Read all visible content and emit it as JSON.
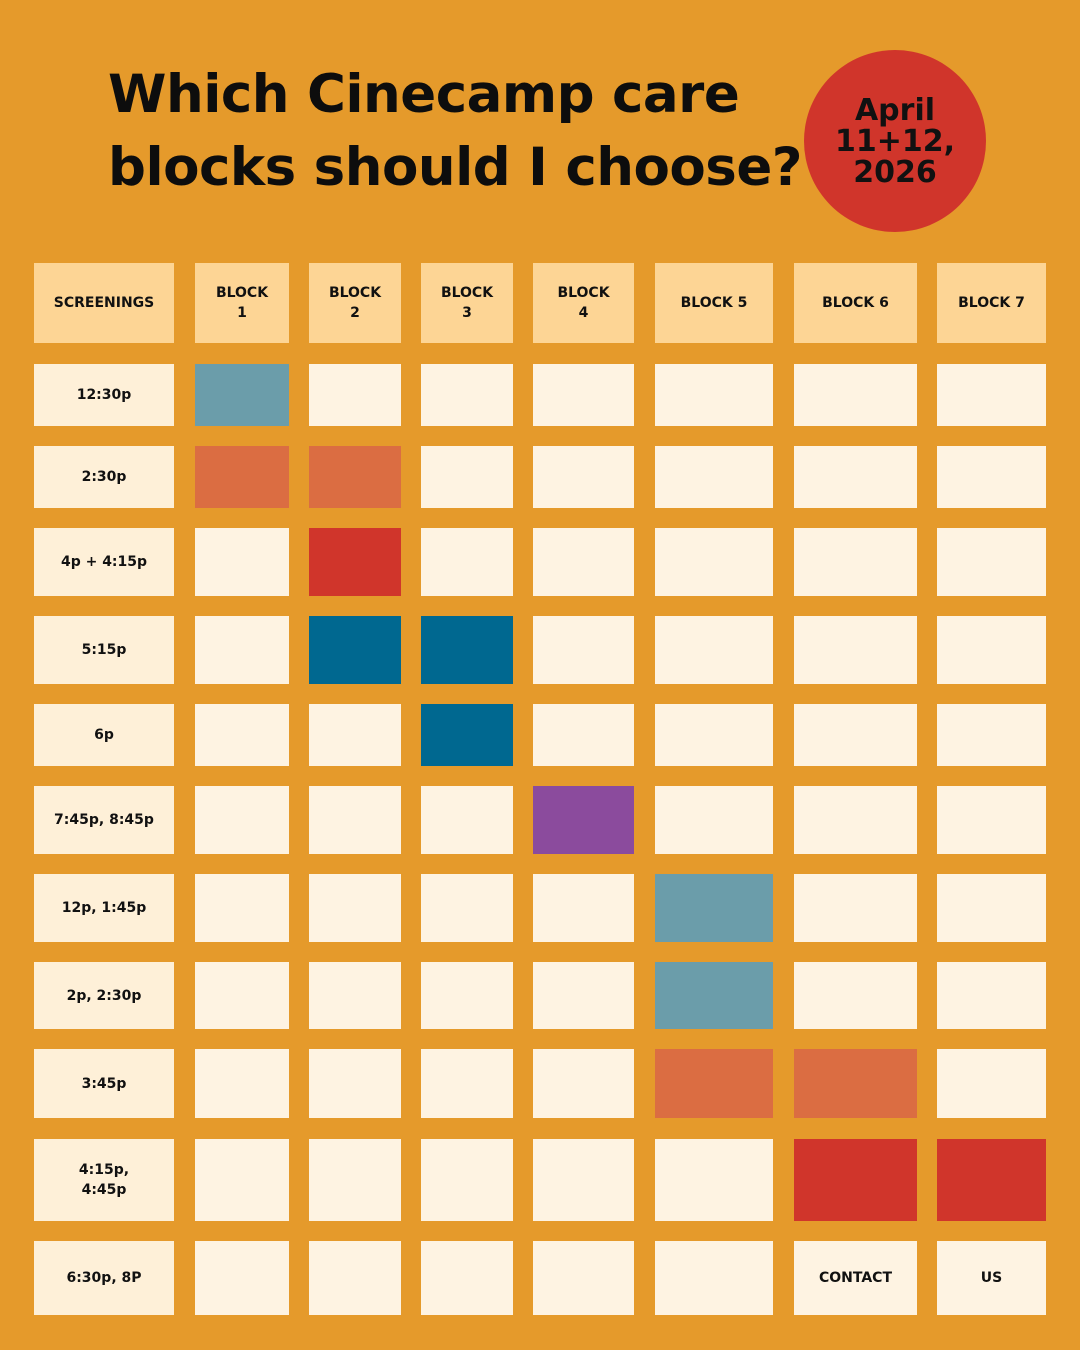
{
  "title": {
    "line1": "Which Cinecamp care",
    "line2": "blocks should I choose?"
  },
  "date_badge": {
    "line1": "April",
    "line2": "11+12,",
    "line3": "2026",
    "color": "#d0352b"
  },
  "colors": {
    "background": "#e59a2b",
    "header_cell": "#fdd595",
    "label_cell": "#fef0d8",
    "empty_cell": "#fef3e2",
    "teal": "#6b9daa",
    "orange": "#db6d42",
    "red": "#d0352b",
    "blue": "#006890",
    "purple": "#8b4b9d"
  },
  "table": {
    "corner_header": "SCREENINGS",
    "columns": [
      [
        "BLOCK",
        "1"
      ],
      [
        "BLOCK",
        "2"
      ],
      [
        "BLOCK",
        "3"
      ],
      [
        "BLOCK",
        "4"
      ],
      [
        "BLOCK 5"
      ],
      [
        "BLOCK 6"
      ],
      [
        "BLOCK 7"
      ]
    ],
    "rows": [
      {
        "label": [
          "12:30p"
        ],
        "cells": [
          "teal",
          "",
          "",
          "",
          "",
          "",
          ""
        ]
      },
      {
        "label": [
          "2:30p"
        ],
        "cells": [
          "orange",
          "orange",
          "",
          "",
          "",
          "",
          ""
        ]
      },
      {
        "label": [
          "4p + 4:15p"
        ],
        "cells": [
          "",
          "red",
          "",
          "",
          "",
          "",
          ""
        ]
      },
      {
        "label": [
          "5:15p"
        ],
        "cells": [
          "",
          "blue",
          "blue",
          "",
          "",
          "",
          ""
        ]
      },
      {
        "label": [
          "6p"
        ],
        "cells": [
          "",
          "",
          "blue",
          "",
          "",
          "",
          ""
        ]
      },
      {
        "label": [
          "7:45p, 8:45p"
        ],
        "cells": [
          "",
          "",
          "",
          "purple",
          "",
          "",
          ""
        ]
      },
      {
        "label": [
          "12p, 1:45p"
        ],
        "cells": [
          "",
          "",
          "",
          "",
          "teal",
          "",
          ""
        ]
      },
      {
        "label": [
          "2p, 2:30p"
        ],
        "cells": [
          "",
          "",
          "",
          "",
          "teal",
          "",
          ""
        ]
      },
      {
        "label": [
          "3:45p"
        ],
        "cells": [
          "",
          "",
          "",
          "",
          "orange",
          "orange",
          ""
        ]
      },
      {
        "label": [
          "4:15p,",
          "4:45p"
        ],
        "cells": [
          "",
          "",
          "",
          "",
          "",
          "red",
          "red"
        ]
      },
      {
        "label": [
          "6:30p, 8P"
        ],
        "cells": [
          "",
          "",
          "",
          "",
          "",
          "",
          ""
        ],
        "texts": [
          "",
          "",
          "",
          "",
          "",
          "CONTACT",
          "US"
        ]
      }
    ]
  }
}
